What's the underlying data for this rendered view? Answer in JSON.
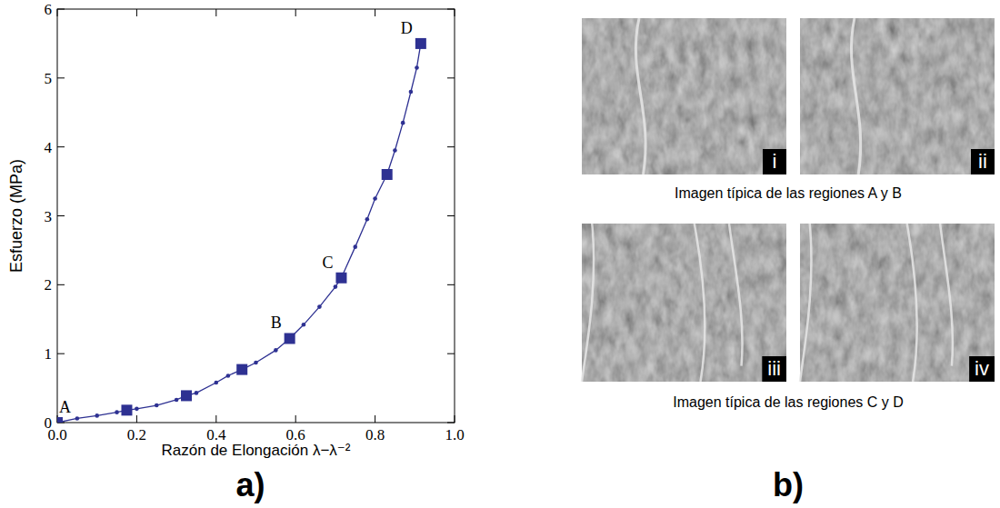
{
  "chart_data": {
    "type": "line",
    "x_label": "Razón de Elongación  λ−λ⁻²",
    "y_label": "Esfuerzo (MPa)",
    "xlim": [
      0,
      1
    ],
    "ylim": [
      0,
      6
    ],
    "xticks": [
      {
        "value": 0,
        "label": "0.0"
      },
      {
        "value": 0.2,
        "label": "0.2"
      },
      {
        "value": 0.4,
        "label": "0.4"
      },
      {
        "value": 0.6,
        "label": "0.6"
      },
      {
        "value": 0.8,
        "label": "0.8"
      },
      {
        "value": 1,
        "label": "1.0"
      }
    ],
    "yticks": [
      0,
      1,
      2,
      3,
      4,
      5,
      6
    ],
    "grid": false,
    "series": [
      {
        "color": "#2e3192",
        "marker": "circle",
        "line_style": "solid",
        "x": [
          0,
          0.05,
          0.1,
          0.15,
          0.175,
          0.2,
          0.25,
          0.3,
          0.325,
          0.35,
          0.4,
          0.43,
          0.465,
          0.5,
          0.55,
          0.585,
          0.62,
          0.66,
          0.7,
          0.715,
          0.75,
          0.78,
          0.8,
          0.83,
          0.85,
          0.87,
          0.89,
          0.905,
          0.915
        ],
        "values": [
          0,
          0.06,
          0.1,
          0.15,
          0.18,
          0.2,
          0.25,
          0.33,
          0.39,
          0.43,
          0.58,
          0.68,
          0.77,
          0.87,
          1.05,
          1.22,
          1.42,
          1.68,
          1.97,
          2.1,
          2.55,
          2.95,
          3.25,
          3.6,
          3.95,
          4.35,
          4.8,
          5.15,
          5.5
        ]
      },
      {
        "color": "#2e3192",
        "marker": "square",
        "line_style": "none",
        "x": [
          0,
          0.175,
          0.325,
          0.465,
          0.585,
          0.715,
          0.83,
          0.915
        ],
        "values": [
          0,
          0.18,
          0.39,
          0.77,
          1.22,
          2.1,
          3.6,
          5.5
        ]
      }
    ],
    "annotations": [
      {
        "text": "A",
        "x": 0,
        "y": 0
      },
      {
        "text": "B",
        "x": 0.585,
        "y": 1.22
      },
      {
        "text": "C",
        "x": 0.715,
        "y": 2.1
      },
      {
        "text": "D",
        "x": 0.915,
        "y": 5.5
      }
    ]
  },
  "panel_labels": [
    "a)",
    "b)"
  ],
  "images": {
    "groups": [
      {
        "caption": "Imagen típica de las regiones A y B",
        "labels": [
          "i",
          "ii"
        ]
      },
      {
        "caption": "Imagen típica de las regiones C y D",
        "labels": [
          "iii",
          "iv"
        ]
      }
    ]
  }
}
